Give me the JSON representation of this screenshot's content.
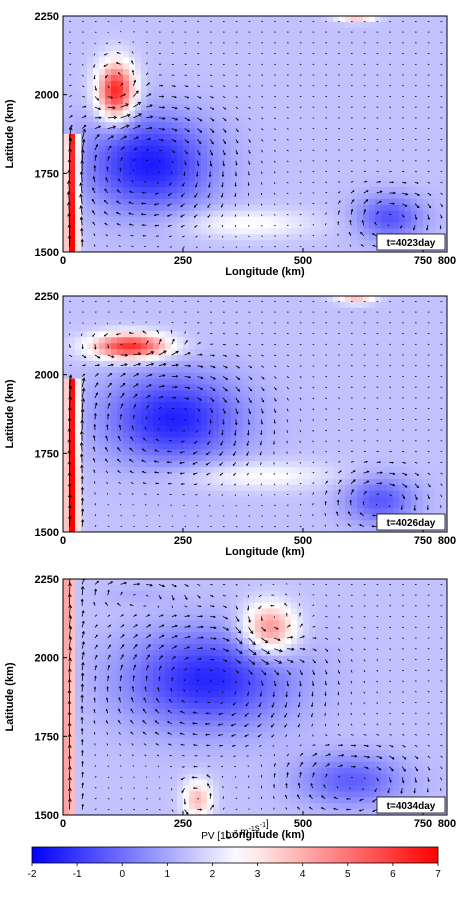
{
  "chart_data": {
    "type": "heatmap",
    "overlay": "velocity vectors",
    "colorbar": {
      "title_main": "PV [10",
      "title_sup1": "-7",
      "title_mid": " m",
      "title_sup2": "-1",
      "title_s": "s",
      "title_sup3": "-1",
      "title_end": "]",
      "ticks": [
        "-2",
        "-1",
        "0",
        "1",
        "2",
        "3",
        "4",
        "5",
        "6",
        "7"
      ],
      "range": [
        -2,
        7
      ],
      "low_color": "#0000ff",
      "mid_color": "#ffffff",
      "high_color": "#ff0000"
    },
    "panels": [
      {
        "stamp": "t=4023day",
        "xlabel": "Longitude (km)",
        "ylabel": "Latitude (km)",
        "xlim": [
          0,
          800
        ],
        "ylim": [
          1500,
          2250
        ],
        "xticks": [
          "0",
          "250",
          "500",
          "750",
          "800"
        ],
        "yticks": [
          "1500",
          "1750",
          "2000",
          "2250"
        ],
        "background_pv": 1.5,
        "features": [
          {
            "kind": "eddy",
            "x": 180,
            "y": 1780,
            "rx": 130,
            "ry": 150,
            "pv": -1.5,
            "rot": -1
          },
          {
            "kind": "eddy",
            "x": 680,
            "y": 1610,
            "rx": 70,
            "ry": 70,
            "pv": -0.5,
            "rot": -1
          },
          {
            "kind": "eddy",
            "x": 110,
            "y": 2010,
            "rx": 38,
            "ry": 90,
            "pv": 6.5,
            "rot": 1
          },
          {
            "kind": "front",
            "x": 18,
            "y0": 1500,
            "y1": 1880,
            "w": 12,
            "pv": 7
          },
          {
            "kind": "eddy",
            "x": 380,
            "y": 1590,
            "rx": 140,
            "ry": 45,
            "pv": 2.7,
            "rot": 0
          },
          {
            "kind": "eddy",
            "x": 610,
            "y": 2245,
            "rx": 40,
            "ry": 15,
            "pv": 3.6,
            "rot": 0
          }
        ]
      },
      {
        "stamp": "t=4026day",
        "xlabel": "Longitude (km)",
        "ylabel": "Latitude (km)",
        "xlim": [
          0,
          800
        ],
        "ylim": [
          1500,
          2250
        ],
        "xticks": [
          "0",
          "250",
          "500",
          "750",
          "800"
        ],
        "yticks": [
          "1500",
          "1750",
          "2000",
          "2250"
        ],
        "background_pv": 1.5,
        "features": [
          {
            "kind": "eddy",
            "x": 230,
            "y": 1860,
            "rx": 140,
            "ry": 140,
            "pv": -1.4,
            "rot": -1
          },
          {
            "kind": "eddy",
            "x": 660,
            "y": 1600,
            "rx": 75,
            "ry": 75,
            "pv": -0.4,
            "rot": -1
          },
          {
            "kind": "eddy",
            "x": 140,
            "y": 2090,
            "rx": 80,
            "ry": 40,
            "pv": 6.3,
            "rot": 1
          },
          {
            "kind": "front",
            "x": 18,
            "y0": 1500,
            "y1": 1980,
            "w": 12,
            "pv": 7
          },
          {
            "kind": "eddy",
            "x": 400,
            "y": 1680,
            "rx": 160,
            "ry": 45,
            "pv": 2.7,
            "rot": 0
          },
          {
            "kind": "eddy",
            "x": 610,
            "y": 2240,
            "rx": 40,
            "ry": 15,
            "pv": 3.6,
            "rot": 0
          }
        ]
      },
      {
        "stamp": "t=4034day",
        "xlabel": "Longitude (km)",
        "ylabel": "Latitude (km)",
        "xlim": [
          0,
          800
        ],
        "ylim": [
          1500,
          2250
        ],
        "xticks": [
          "0",
          "250",
          "500",
          "750",
          "800"
        ],
        "yticks": [
          "1500",
          "1750",
          "2000",
          "2250"
        ],
        "background_pv": 1.5,
        "features": [
          {
            "kind": "eddy",
            "x": 300,
            "y": 1930,
            "rx": 170,
            "ry": 150,
            "pv": -1.3,
            "rot": -1
          },
          {
            "kind": "eddy",
            "x": 600,
            "y": 1610,
            "rx": 110,
            "ry": 80,
            "pv": -0.3,
            "rot": -1
          },
          {
            "kind": "eddy",
            "x": 430,
            "y": 2090,
            "rx": 55,
            "ry": 80,
            "pv": 4.8,
            "rot": 1
          },
          {
            "kind": "eddy",
            "x": 280,
            "y": 1550,
            "rx": 30,
            "ry": 60,
            "pv": 3.8,
            "rot": 1
          },
          {
            "kind": "front",
            "x": 12,
            "y0": 1500,
            "y1": 2250,
            "w": 9,
            "pv": 5.5
          },
          {
            "kind": "eddy",
            "x": 150,
            "y": 2200,
            "rx": 80,
            "ry": 30,
            "pv": 1.2,
            "rot": -1
          }
        ]
      }
    ]
  }
}
